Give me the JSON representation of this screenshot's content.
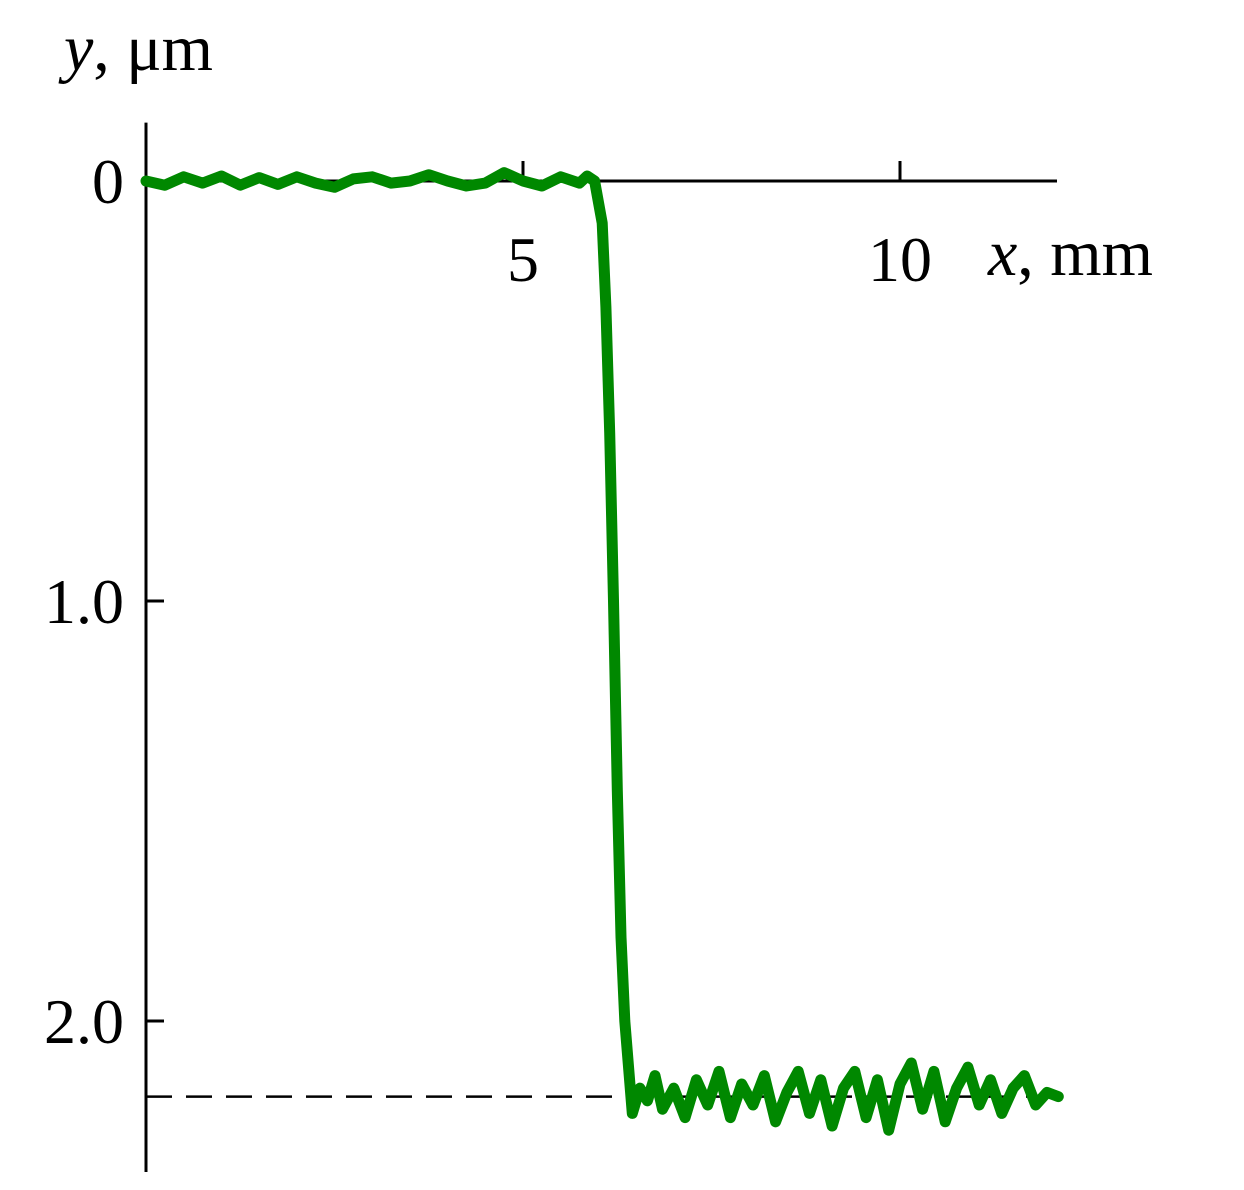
{
  "chart_data": {
    "type": "line",
    "xlabel": {
      "var": "x",
      "unit": ", mm"
    },
    "ylabel": {
      "var": "y",
      "unit": ", μm"
    },
    "xlim": [
      0,
      12.1
    ],
    "ylim": [
      2.3,
      -0.12
    ],
    "y_axis_inverted": true,
    "x_ticks": [
      {
        "value": 5,
        "label": "5"
      },
      {
        "value": 10,
        "label": "10"
      }
    ],
    "y_ticks": [
      {
        "value": 0,
        "label": "0"
      },
      {
        "value": 1.0,
        "label": "1.0"
      },
      {
        "value": 2.0,
        "label": "2.0"
      }
    ],
    "reference_lines": [
      {
        "y": 2.18,
        "style": "dashed"
      }
    ],
    "grid": false,
    "series": [
      {
        "color": "#008800",
        "x": [
          0.0,
          0.25,
          0.5,
          0.75,
          1.0,
          1.25,
          1.5,
          1.75,
          2.0,
          2.25,
          2.5,
          2.75,
          3.0,
          3.25,
          3.5,
          3.75,
          4.0,
          4.25,
          4.5,
          4.75,
          5.0,
          5.25,
          5.5,
          5.75,
          5.85,
          5.95,
          6.05,
          6.1,
          6.15,
          6.2,
          6.25,
          6.3,
          6.35,
          6.45,
          6.55,
          6.65,
          6.75,
          6.85,
          7.0,
          7.15,
          7.3,
          7.45,
          7.6,
          7.75,
          7.9,
          8.05,
          8.2,
          8.35,
          8.5,
          8.65,
          8.8,
          8.95,
          9.1,
          9.25,
          9.4,
          9.55,
          9.7,
          9.85,
          10.0,
          10.15,
          10.3,
          10.45,
          10.6,
          10.75,
          10.9,
          11.05,
          11.2,
          11.35,
          11.5,
          11.65,
          11.8,
          11.95,
          12.1
        ],
        "y": [
          0.0,
          0.01,
          -0.01,
          0.005,
          -0.012,
          0.01,
          -0.008,
          0.008,
          -0.01,
          0.005,
          0.015,
          -0.005,
          -0.01,
          0.005,
          0.0,
          -0.015,
          0.0,
          0.012,
          0.005,
          -0.02,
          0.0,
          0.012,
          -0.01,
          0.005,
          -0.012,
          0.0,
          0.1,
          0.3,
          0.6,
          1.0,
          1.45,
          1.8,
          2.0,
          2.22,
          2.16,
          2.19,
          2.13,
          2.21,
          2.16,
          2.23,
          2.14,
          2.2,
          2.12,
          2.23,
          2.15,
          2.2,
          2.13,
          2.24,
          2.17,
          2.12,
          2.22,
          2.14,
          2.25,
          2.16,
          2.12,
          2.23,
          2.14,
          2.26,
          2.15,
          2.1,
          2.21,
          2.12,
          2.24,
          2.16,
          2.11,
          2.2,
          2.14,
          2.22,
          2.16,
          2.13,
          2.2,
          2.17,
          2.18
        ]
      }
    ]
  }
}
